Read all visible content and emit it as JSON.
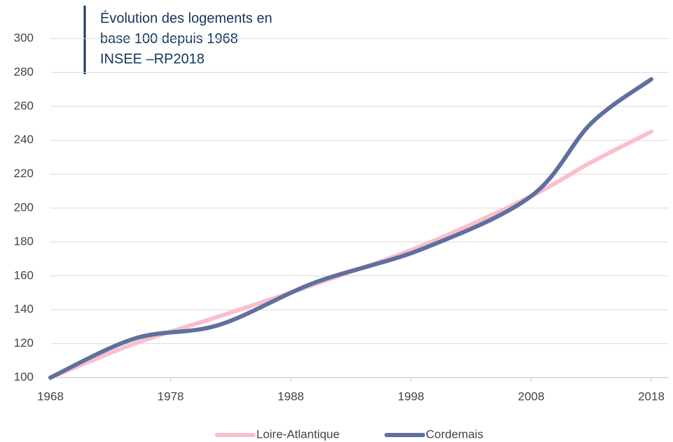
{
  "chart_data": {
    "type": "line",
    "title": [
      "Évolution des logements en",
      "base 100 depuis 1968",
      "INSEE –RP2018"
    ],
    "x": [
      1968,
      1975,
      1982,
      1990,
      1999,
      2008,
      2013,
      2018
    ],
    "series": [
      {
        "name": "Loire-Atlantique",
        "color": "#f9c0cb",
        "values": [
          100,
          120,
          136,
          155,
          178,
          207,
          227,
          245
        ]
      },
      {
        "name": "Cordemais",
        "color": "#5f6f9e",
        "values": [
          100,
          123,
          131,
          156,
          176,
          207,
          250,
          276
        ]
      }
    ],
    "xlim": [
      1968,
      2018
    ],
    "xticks": [
      1968,
      1978,
      1988,
      1998,
      2008,
      2018
    ],
    "ylim": [
      100,
      300
    ],
    "yticks": [
      100,
      120,
      140,
      160,
      180,
      200,
      220,
      240,
      260,
      280,
      300
    ],
    "grid": true,
    "legend": "bottom"
  }
}
